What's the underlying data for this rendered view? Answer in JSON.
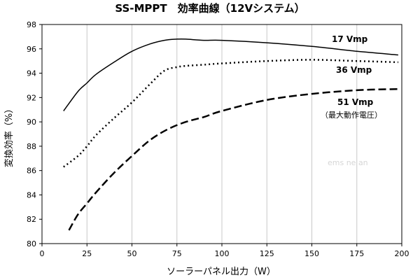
{
  "chart_data": {
    "type": "line",
    "title": "SS-MPPT　効率曲線（12Vシステム）",
    "xlabel": "ソーラーパネル出力（W）",
    "ylabel": "変換効率（%）",
    "xlim": [
      0,
      200
    ],
    "ylim": [
      80,
      98
    ],
    "x_ticks": [
      "0",
      "25",
      "50",
      "75",
      "100",
      "125",
      "150",
      "175",
      "200"
    ],
    "y_ticks": [
      "80",
      "82",
      "84",
      "86",
      "88",
      "90",
      "92",
      "94",
      "96",
      "98"
    ],
    "grid": "vertical",
    "series": [
      {
        "name": "17 Vmp",
        "style": "solid",
        "x": [
          12,
          20,
          25,
          30,
          40,
          50,
          60,
          68,
          75,
          80,
          90,
          100,
          125,
          150,
          175,
          198
        ],
        "values": [
          90.9,
          92.5,
          93.2,
          93.9,
          94.9,
          95.8,
          96.4,
          96.7,
          96.8,
          96.8,
          96.7,
          96.7,
          96.5,
          96.2,
          95.8,
          95.5
        ]
      },
      {
        "name": "36 Vmp",
        "style": "dotted",
        "x": [
          12,
          20,
          25,
          30,
          40,
          50,
          60,
          68,
          75,
          80,
          90,
          100,
          125,
          150,
          175,
          198
        ],
        "values": [
          86.3,
          87.2,
          88.0,
          88.9,
          90.3,
          91.6,
          93.1,
          94.2,
          94.5,
          94.6,
          94.7,
          94.8,
          95.0,
          95.1,
          95.0,
          94.9
        ]
      },
      {
        "name": "51 Vmp",
        "style": "dashed",
        "x": [
          15,
          20,
          25,
          30,
          40,
          50,
          60,
          70,
          80,
          90,
          100,
          125,
          150,
          175,
          198
        ],
        "values": [
          81.1,
          82.4,
          83.3,
          84.2,
          85.8,
          87.2,
          88.5,
          89.4,
          90.0,
          90.4,
          90.9,
          91.8,
          92.3,
          92.6,
          92.7
        ]
      }
    ],
    "annotation": "（最大動作電圧）",
    "watermark": "ems ne  an"
  }
}
